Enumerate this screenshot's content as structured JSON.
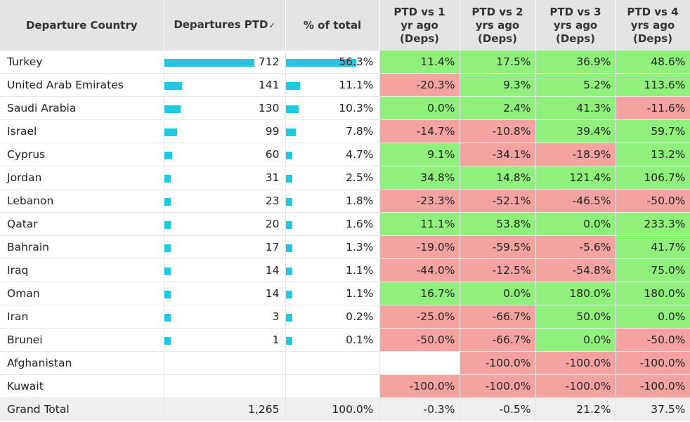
{
  "headers": {
    "country": "Departure Country",
    "departures": "Departures PTD",
    "pct_total": "% of total",
    "vs1": [
      "PTD vs 1",
      "yr ago",
      "(Deps)"
    ],
    "vs2": [
      "PTD vs 2",
      "yrs ago",
      "(Deps)"
    ],
    "vs3": [
      "PTD vs 3",
      "yrs ago",
      "(Deps)"
    ],
    "vs4": [
      "PTD vs 4",
      "yrs ago",
      "(Deps)"
    ]
  },
  "sort_icon": "sort-descending-icon",
  "colors": {
    "bar": "#1ec8de",
    "positive": "#8ff07c",
    "negative": "#f5a3a0"
  },
  "rows": [
    {
      "country": "Turkey",
      "deps": "712",
      "deps_value": 712,
      "pct": "56.3%",
      "pct_value": 56.3,
      "vs1": "11.4%",
      "vs2": "17.5%",
      "vs3": "36.9%",
      "vs4": "48.6%"
    },
    {
      "country": "United Arab Emirates",
      "deps": "141",
      "deps_value": 141,
      "pct": "11.1%",
      "pct_value": 11.1,
      "vs1": "-20.3%",
      "vs2": "9.3%",
      "vs3": "5.2%",
      "vs4": "113.6%"
    },
    {
      "country": "Saudi Arabia",
      "deps": "130",
      "deps_value": 130,
      "pct": "10.3%",
      "pct_value": 10.3,
      "vs1": "0.0%",
      "vs2": "2.4%",
      "vs3": "41.3%",
      "vs4": "-11.6%"
    },
    {
      "country": "Israel",
      "deps": "99",
      "deps_value": 99,
      "pct": "7.8%",
      "pct_value": 7.8,
      "vs1": "-14.7%",
      "vs2": "-10.8%",
      "vs3": "39.4%",
      "vs4": "59.7%"
    },
    {
      "country": "Cyprus",
      "deps": "60",
      "deps_value": 60,
      "pct": "4.7%",
      "pct_value": 4.7,
      "vs1": "9.1%",
      "vs2": "-34.1%",
      "vs3": "-18.9%",
      "vs4": "13.2%"
    },
    {
      "country": "Jordan",
      "deps": "31",
      "deps_value": 31,
      "pct": "2.5%",
      "pct_value": 2.5,
      "vs1": "34.8%",
      "vs2": "14.8%",
      "vs3": "121.4%",
      "vs4": "106.7%"
    },
    {
      "country": "Lebanon",
      "deps": "23",
      "deps_value": 23,
      "pct": "1.8%",
      "pct_value": 1.8,
      "vs1": "-23.3%",
      "vs2": "-52.1%",
      "vs3": "-46.5%",
      "vs4": "-50.0%"
    },
    {
      "country": "Qatar",
      "deps": "20",
      "deps_value": 20,
      "pct": "1.6%",
      "pct_value": 1.6,
      "vs1": "11.1%",
      "vs2": "53.8%",
      "vs3": "0.0%",
      "vs4": "233.3%"
    },
    {
      "country": "Bahrain",
      "deps": "17",
      "deps_value": 17,
      "pct": "1.3%",
      "pct_value": 1.3,
      "vs1": "-19.0%",
      "vs2": "-59.5%",
      "vs3": "-5.6%",
      "vs4": "41.7%"
    },
    {
      "country": "Iraq",
      "deps": "14",
      "deps_value": 14,
      "pct": "1.1%",
      "pct_value": 1.1,
      "vs1": "-44.0%",
      "vs2": "-12.5%",
      "vs3": "-54.8%",
      "vs4": "75.0%"
    },
    {
      "country": "Oman",
      "deps": "14",
      "deps_value": 14,
      "pct": "1.1%",
      "pct_value": 1.1,
      "vs1": "16.7%",
      "vs2": "0.0%",
      "vs3": "180.0%",
      "vs4": "180.0%"
    },
    {
      "country": "Iran",
      "deps": "3",
      "deps_value": 3,
      "pct": "0.2%",
      "pct_value": 0.2,
      "vs1": "-25.0%",
      "vs2": "-66.7%",
      "vs3": "50.0%",
      "vs4": "0.0%"
    },
    {
      "country": "Brunei",
      "deps": "1",
      "deps_value": 1,
      "pct": "0.1%",
      "pct_value": 0.1,
      "vs1": "-50.0%",
      "vs2": "-66.7%",
      "vs3": "0.0%",
      "vs4": "-50.0%"
    },
    {
      "country": "Afghanistan",
      "deps": "",
      "deps_value": null,
      "pct": "",
      "pct_value": null,
      "vs1": "",
      "vs2": "-100.0%",
      "vs3": "-100.0%",
      "vs4": "-100.0%"
    },
    {
      "country": "Kuwait",
      "deps": "",
      "deps_value": null,
      "pct": "",
      "pct_value": null,
      "vs1": "-100.0%",
      "vs2": "-100.0%",
      "vs3": "-100.0%",
      "vs4": "-100.0%"
    }
  ],
  "total": {
    "country": "Grand Total",
    "deps": "1,265",
    "pct": "100.0%",
    "vs1": "-0.3%",
    "vs2": "-0.5%",
    "vs3": "21.2%",
    "vs4": "37.5%"
  }
}
